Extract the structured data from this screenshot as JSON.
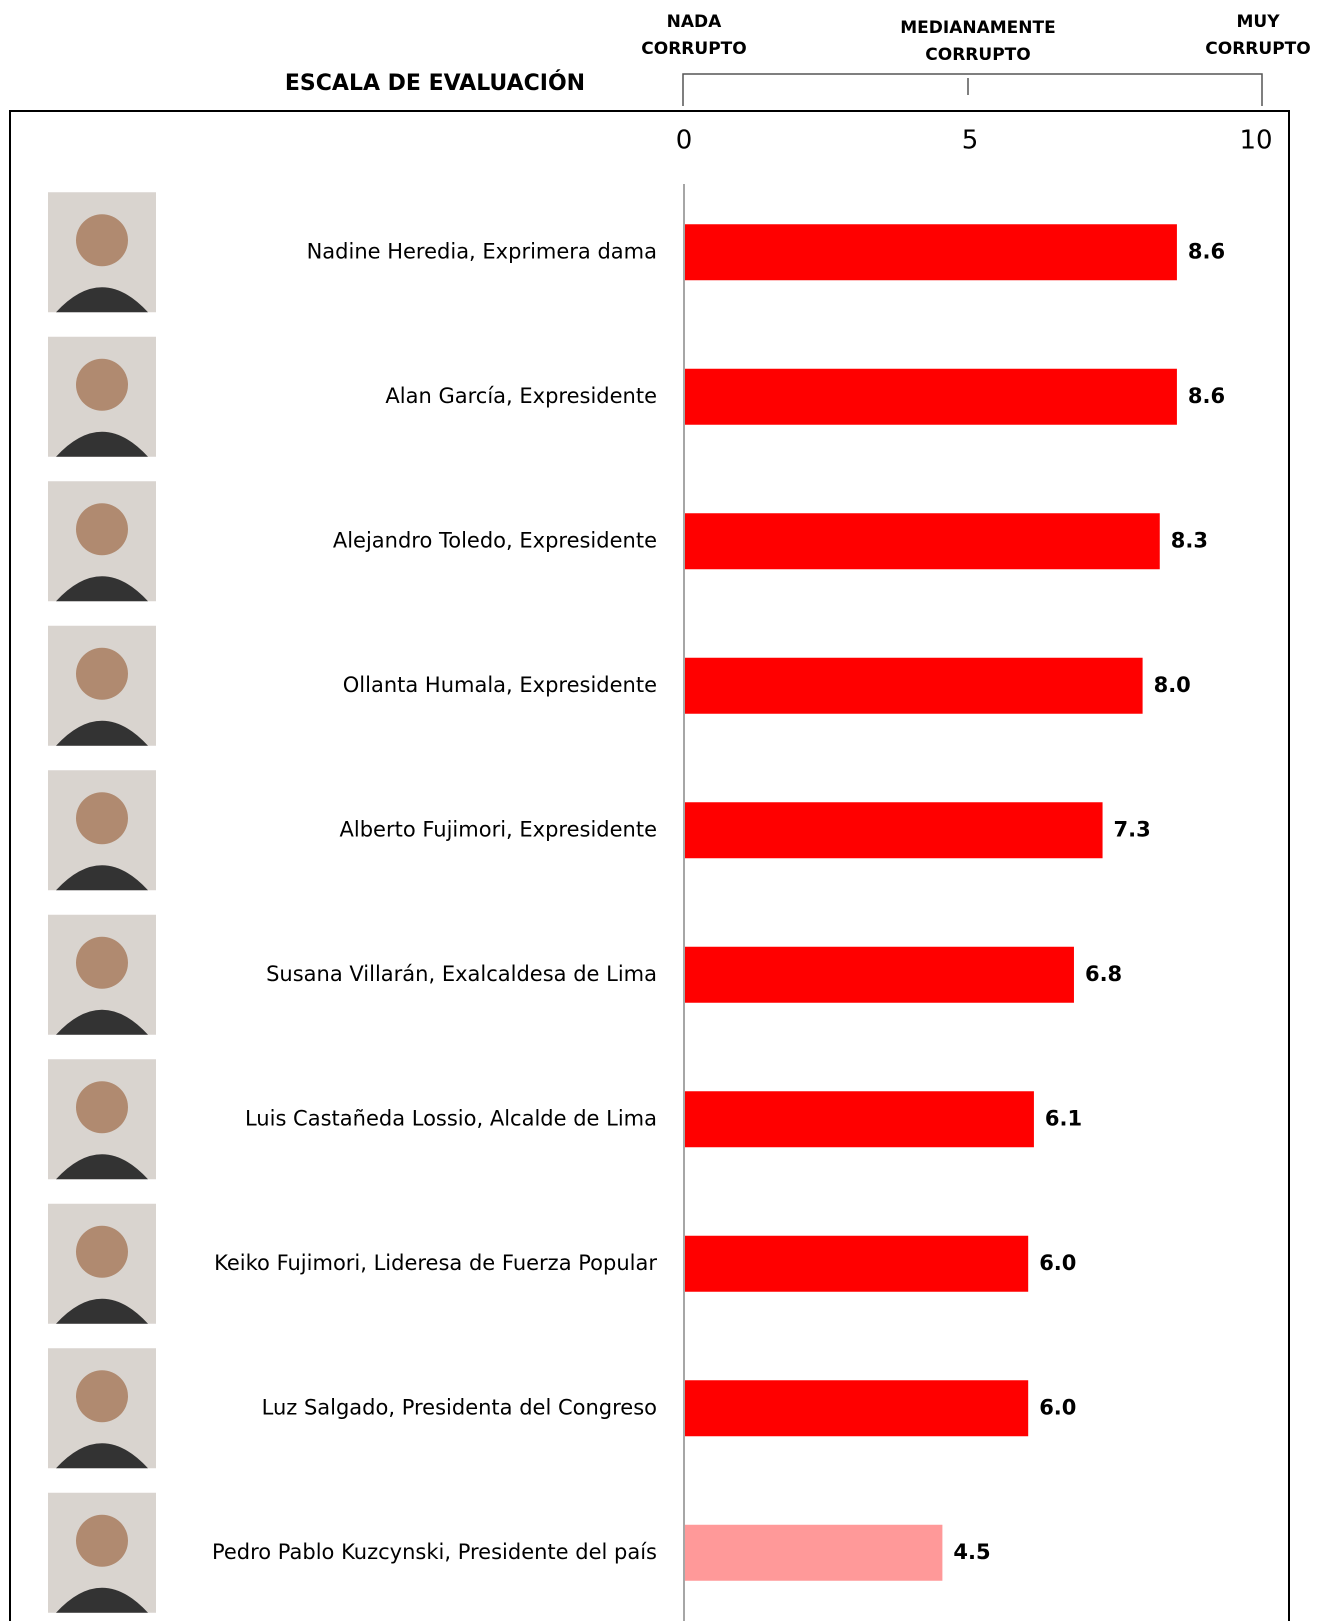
{
  "chart_data": {
    "type": "bar",
    "orientation": "horizontal",
    "scale_title": "ESCALA DE EVALUACIÓN",
    "scale_labels": [
      [
        "NADA",
        "CORRUPTO"
      ],
      [
        "MEDIANAMENTE",
        "CORRUPTO"
      ],
      [
        "MUY",
        "CORRUPTO"
      ]
    ],
    "categories": [
      "Nadine Heredia, Exprimera dama",
      "Alan García, Expresidente",
      "Alejandro Toledo, Expresidente",
      "Ollanta Humala, Expresidente",
      "Alberto Fujimori, Expresidente",
      "Susana Villarán, Exalcaldesa de Lima",
      "Luis Castañeda Lossio, Alcalde de Lima",
      "Keiko Fujimori, Lideresa de Fuerza Popular",
      "Luz Salgado, Presidenta del Congreso",
      "Pedro Pablo Kuzcynski, Presidente del país"
    ],
    "values": [
      8.6,
      8.6,
      8.3,
      8.0,
      7.3,
      6.8,
      6.1,
      6.0,
      6.0,
      4.5
    ],
    "value_labels": [
      "8.6",
      "8.6",
      "8.3",
      "8.0",
      "7.3",
      "6.8",
      "6.1",
      "6.0",
      "6.0",
      "4.5"
    ],
    "colors": [
      "#ff0000",
      "#ff0000",
      "#ff0000",
      "#ff0000",
      "#ff0000",
      "#ff0000",
      "#ff0000",
      "#ff0000",
      "#ff0000",
      "#ff9999"
    ],
    "xlim": [
      0,
      10
    ],
    "xticks": [
      0,
      5,
      10
    ]
  }
}
